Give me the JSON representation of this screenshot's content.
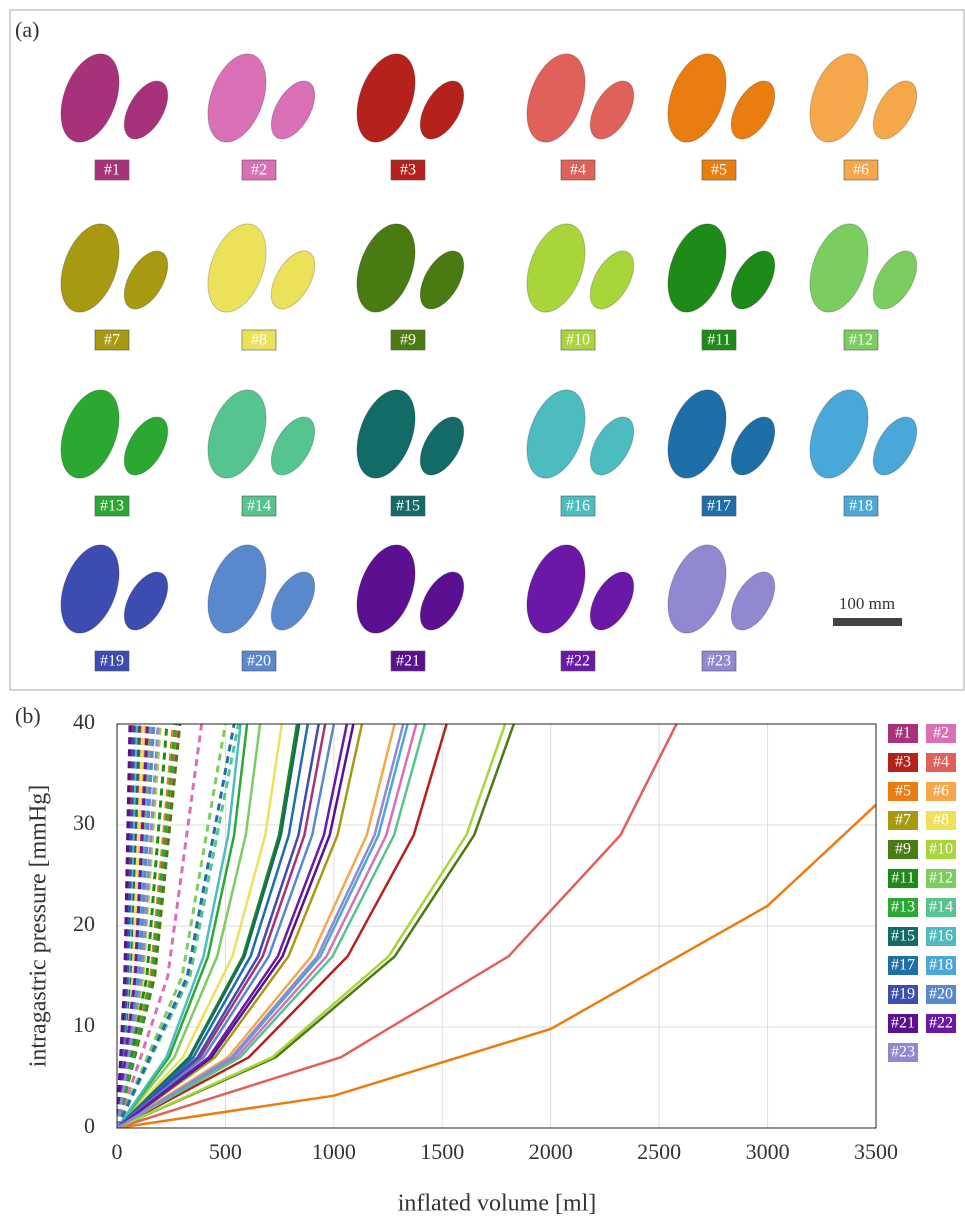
{
  "panel_a": {
    "title": "(a)",
    "labels": [
      "#1",
      "#2",
      "#3",
      "#4",
      "#5",
      "#6",
      "#7",
      "#8",
      "#9",
      "#10",
      "#11",
      "#12",
      "#13",
      "#14",
      "#15",
      "#16",
      "#17",
      "#18",
      "#19",
      "#20",
      "#21",
      "#22",
      "#23"
    ],
    "scale_bar": "100 mm"
  },
  "chart_data": {
    "type": "line",
    "title": "(b)",
    "xlabel": "inflated volume [ml]",
    "ylabel": "intragastric pressure [mmHg]",
    "xlim": [
      0,
      3500
    ],
    "ylim": [
      0,
      40
    ],
    "xticks": [
      0,
      500,
      1000,
      1500,
      2000,
      2500,
      3000,
      3500
    ],
    "yticks": [
      0,
      10,
      20,
      30,
      40
    ],
    "grid": true,
    "legend": "right",
    "series": [
      {
        "name": "#1",
        "color": "#a8327a",
        "solid": {
          "x": [
            0,
            384,
            672,
            864,
            960
          ],
          "values": [
            0,
            7,
            17,
            29,
            40
          ]
        },
        "dashed": {
          "x": [
            0,
            66,
            110
          ],
          "values": [
            0,
            15,
            40
          ]
        }
      },
      {
        "name": "#2",
        "color": "#d96fb4",
        "solid": {
          "x": [
            0,
            552,
            966,
            1242,
            1380
          ],
          "values": [
            0,
            7,
            17,
            29,
            40
          ]
        },
        "dashed": {
          "x": [
            0,
            234,
            390
          ],
          "values": [
            0,
            15,
            40
          ]
        }
      },
      {
        "name": "#3",
        "color": "#b5221b",
        "solid": {
          "x": [
            0,
            608,
            1064,
            1368,
            1520
          ],
          "values": [
            0,
            7,
            17,
            29,
            40
          ]
        },
        "dashed": {
          "x": [
            0,
            42,
            70
          ],
          "values": [
            0,
            15,
            40
          ]
        }
      },
      {
        "name": "#4",
        "color": "#e0605a",
        "solid": {
          "x": [
            0,
            1032,
            1806,
            2322,
            2580
          ],
          "values": [
            0,
            7,
            17,
            29,
            40
          ]
        },
        "dashed": {
          "x": [
            0,
            168,
            280
          ],
          "values": [
            0,
            15,
            40
          ]
        }
      },
      {
        "name": "#5",
        "color": "#ea7d10",
        "solid": {
          "x": [
            0,
            1000,
            2000,
            3000,
            3500
          ],
          "values": [
            0,
            3.2,
            9.8,
            22,
            32
          ]
        },
        "dashed": {
          "x": [
            0,
            156,
            260
          ],
          "values": [
            0,
            15,
            40
          ]
        }
      },
      {
        "name": "#6",
        "color": "#f5a84a",
        "solid": {
          "x": [
            0,
            512,
            896,
            1152,
            1280
          ],
          "values": [
            0,
            7,
            17,
            29,
            40
          ]
        },
        "dashed": {
          "x": [
            0,
            78,
            130
          ],
          "values": [
            0,
            15,
            40
          ]
        }
      },
      {
        "name": "#7",
        "color": "#a89a10",
        "solid": {
          "x": [
            0,
            452,
            791,
            1017,
            1130
          ],
          "values": [
            0,
            7,
            17,
            29,
            40
          ]
        },
        "dashed": {
          "x": [
            0,
            90,
            150
          ],
          "values": [
            0,
            15,
            40
          ]
        }
      },
      {
        "name": "#8",
        "color": "#ece25a",
        "solid": {
          "x": [
            0,
            304,
            532,
            684,
            760
          ],
          "values": [
            0,
            7,
            17,
            29,
            40
          ]
        },
        "dashed": {
          "x": [
            0,
            72,
            120
          ],
          "values": [
            0,
            15,
            40
          ]
        }
      },
      {
        "name": "#9",
        "color": "#4a7a12",
        "solid": {
          "x": [
            0,
            732,
            1281,
            1647,
            1830
          ],
          "values": [
            0,
            7,
            17,
            29,
            40
          ]
        },
        "dashed": {
          "x": [
            0,
            174,
            290
          ],
          "values": [
            0,
            15,
            40
          ]
        }
      },
      {
        "name": "#10",
        "color": "#a8d63a",
        "solid": {
          "x": [
            0,
            716,
            1253,
            1611,
            1790
          ],
          "values": [
            0,
            7,
            17,
            29,
            40
          ]
        },
        "dashed": {
          "x": [
            0,
            120,
            200
          ],
          "values": [
            0,
            15,
            40
          ]
        }
      },
      {
        "name": "#11",
        "color": "#1e8a18",
        "solid": {
          "x": [
            0,
            332,
            581,
            747,
            830
          ],
          "values": [
            0,
            7,
            17,
            29,
            40
          ]
        },
        "dashed": {
          "x": [
            0,
            138,
            230
          ],
          "values": [
            0,
            15,
            40
          ]
        }
      },
      {
        "name": "#12",
        "color": "#7ccd60",
        "solid": {
          "x": [
            0,
            264,
            462,
            594,
            660
          ],
          "values": [
            0,
            7,
            17,
            29,
            40
          ]
        },
        "dashed": {
          "x": [
            0,
            300,
            500
          ],
          "values": [
            0,
            15,
            40
          ]
        }
      },
      {
        "name": "#13",
        "color": "#2aa832",
        "solid": {
          "x": [
            0,
            240,
            420,
            540,
            600
          ],
          "values": [
            0,
            7,
            17,
            29,
            40
          ]
        },
        "dashed": {
          "x": [
            0,
            162,
            270
          ],
          "values": [
            0,
            15,
            40
          ]
        }
      },
      {
        "name": "#14",
        "color": "#56c48e",
        "solid": {
          "x": [
            0,
            568,
            994,
            1278,
            1420
          ],
          "values": [
            0,
            7,
            17,
            29,
            40
          ]
        },
        "dashed": {
          "x": [
            0,
            336,
            560
          ],
          "values": [
            0,
            15,
            40
          ]
        }
      },
      {
        "name": "#15",
        "color": "#126b66",
        "solid": {
          "x": [
            0,
            336,
            588,
            756,
            840
          ],
          "values": [
            0,
            7,
            17,
            29,
            40
          ]
        },
        "dashed": {
          "x": [
            0,
            60,
            100
          ],
          "values": [
            0,
            15,
            40
          ]
        }
      },
      {
        "name": "#16",
        "color": "#4cbcc0",
        "solid": {
          "x": [
            0,
            228,
            399,
            513,
            570
          ],
          "values": [
            0,
            7,
            17,
            29,
            40
          ]
        },
        "dashed": {
          "x": [
            0,
            54,
            90
          ],
          "values": [
            0,
            15,
            40
          ]
        }
      },
      {
        "name": "#17",
        "color": "#1e6ea8",
        "solid": {
          "x": [
            0,
            352,
            616,
            792,
            880
          ],
          "values": [
            0,
            7,
            17,
            29,
            40
          ]
        },
        "dashed": {
          "x": [
            0,
            324,
            540
          ],
          "values": [
            0,
            15,
            40
          ]
        }
      },
      {
        "name": "#18",
        "color": "#4aa8d8",
        "solid": {
          "x": [
            0,
            536,
            938,
            1206,
            1340
          ],
          "values": [
            0,
            7,
            17,
            29,
            40
          ]
        },
        "dashed": {
          "x": [
            0,
            96,
            160
          ],
          "values": [
            0,
            15,
            40
          ]
        }
      },
      {
        "name": "#19",
        "color": "#3c4cb0",
        "solid": {
          "x": [
            0,
            372,
            651,
            837,
            930
          ],
          "values": [
            0,
            7,
            17,
            29,
            40
          ]
        },
        "dashed": {
          "x": [
            0,
            48,
            80
          ],
          "values": [
            0,
            15,
            40
          ]
        }
      },
      {
        "name": "#20",
        "color": "#5a88cc",
        "solid": {
          "x": [
            0,
            400,
            700,
            900,
            1000
          ],
          "values": [
            0,
            7,
            17,
            29,
            40
          ]
        },
        "dashed": {
          "x": [
            0,
            102,
            170
          ],
          "values": [
            0,
            15,
            40
          ]
        }
      },
      {
        "name": "#21",
        "color": "#5a1090",
        "solid": {
          "x": [
            0,
            436,
            763,
            981,
            1090
          ],
          "values": [
            0,
            7,
            17,
            29,
            40
          ]
        },
        "dashed": {
          "x": [
            0,
            36,
            60
          ],
          "values": [
            0,
            15,
            40
          ]
        }
      },
      {
        "name": "#22",
        "color": "#6a18a8",
        "solid": {
          "x": [
            0,
            424,
            742,
            954,
            1060
          ],
          "values": [
            0,
            7,
            17,
            29,
            40
          ]
        },
        "dashed": {
          "x": [
            0,
            84,
            140
          ],
          "values": [
            0,
            15,
            40
          ]
        }
      },
      {
        "name": "#23",
        "color": "#9088d0",
        "solid": {
          "x": [
            0,
            528,
            924,
            1188,
            1320
          ],
          "values": [
            0,
            7,
            17,
            29,
            40
          ]
        },
        "dashed": {
          "x": [
            0,
            114,
            190
          ],
          "values": [
            0,
            15,
            40
          ]
        }
      }
    ]
  }
}
